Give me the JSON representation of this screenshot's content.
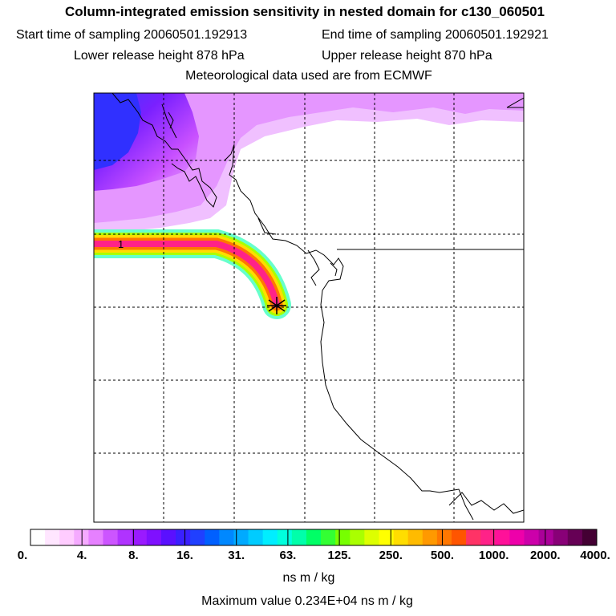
{
  "header": {
    "title": "Column-integrated emission sensitivity in nested domain for c130_060501",
    "start_label": "Start time of sampling 20060501.192913",
    "end_label": "End time of sampling 20060501.192921",
    "lower_label": "Lower release height  878 hPa",
    "upper_label": "Upper release height  870 hPa",
    "met_label": "Meteorological data used are from ECMWF"
  },
  "map": {
    "contour_label": "1",
    "release_marker": "release-point-star"
  },
  "legend": {
    "ticks": [
      "0.",
      "4.",
      "8.",
      "16.",
      "31.",
      "63.",
      "125.",
      "250.",
      "500.",
      "1000.",
      "2000.",
      "4000."
    ],
    "colors": [
      "#ffffff",
      "#ffe6ff",
      "#ffccff",
      "#f5aaff",
      "#e680ff",
      "#cc55ff",
      "#b033ff",
      "#9a1aff",
      "#7f10ff",
      "#5a10ff",
      "#3a20ff",
      "#2040ff",
      "#0060ff",
      "#0088ff",
      "#00aaff",
      "#00ccff",
      "#00eeff",
      "#00ffdd",
      "#00ffaa",
      "#00ff66",
      "#33ff33",
      "#77ff00",
      "#aaff00",
      "#ddff00",
      "#ffff00",
      "#ffdd00",
      "#ffbb00",
      "#ff9900",
      "#ff7700",
      "#ff5500",
      "#ff3366",
      "#ff2288",
      "#ff1199",
      "#ee00aa",
      "#cc00aa",
      "#aa0099",
      "#880077",
      "#660055",
      "#440033"
    ],
    "units": "ns m / kg",
    "max_value": "Maximum value  0.234E+04 ns m / kg"
  }
}
